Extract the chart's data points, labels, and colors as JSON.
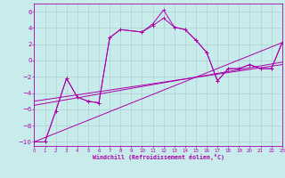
{
  "bg_color": "#c8ecec",
  "grid_color": "#b0d0d0",
  "line_color": "#aa00aa",
  "xlabel": "Windchill (Refroidissement éolien,°C)",
  "xlim": [
    0,
    23
  ],
  "ylim": [
    -10.5,
    7.0
  ],
  "xticks": [
    0,
    1,
    2,
    3,
    4,
    5,
    6,
    7,
    8,
    9,
    10,
    11,
    12,
    13,
    14,
    15,
    16,
    17,
    18,
    19,
    20,
    21,
    22,
    23
  ],
  "yticks": [
    -10,
    -8,
    -6,
    -4,
    -2,
    0,
    2,
    4,
    6
  ],
  "curve1_x": [
    0,
    1,
    2,
    3,
    4,
    5,
    6,
    7,
    8,
    10,
    11,
    12,
    13,
    14,
    15,
    16,
    17,
    18,
    19,
    20,
    21,
    22,
    23
  ],
  "curve1_y": [
    -10,
    -10,
    -6.2,
    -2.2,
    -4.5,
    -5.0,
    -5.2,
    2.8,
    3.8,
    3.5,
    4.5,
    6.2,
    4.1,
    3.8,
    2.5,
    1.0,
    -2.5,
    -1.0,
    -1.0,
    -0.5,
    -1.0,
    -1.0,
    2.2
  ],
  "curve2_x": [
    0,
    1,
    2,
    3,
    4,
    5,
    6,
    7,
    8,
    10,
    11,
    12,
    13,
    14,
    15,
    16,
    17,
    18,
    19,
    20,
    21,
    22,
    23
  ],
  "curve2_y": [
    -10,
    -10,
    -6.2,
    -2.2,
    -4.5,
    -5.0,
    -5.2,
    2.8,
    3.8,
    3.5,
    4.3,
    5.2,
    4.1,
    3.8,
    2.5,
    1.0,
    -2.5,
    -1.0,
    -1.0,
    -0.5,
    -1.0,
    -1.0,
    2.2
  ],
  "line1_x": [
    0,
    23
  ],
  "line1_y": [
    -10.0,
    2.2
  ],
  "line2_x": [
    0,
    23
  ],
  "line2_y": [
    -5.5,
    -0.2
  ],
  "line3_x": [
    0,
    23
  ],
  "line3_y": [
    -5.0,
    -0.5
  ]
}
